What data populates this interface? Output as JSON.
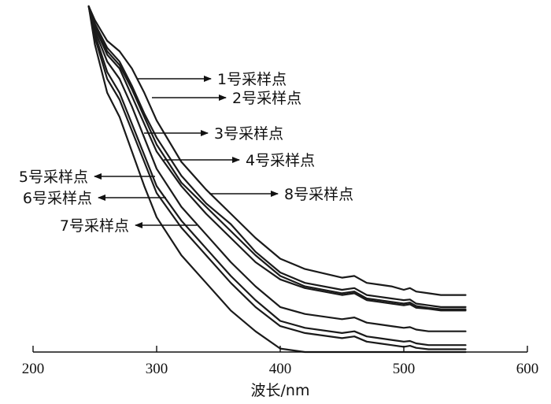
{
  "chart_data": {
    "type": "line",
    "title": "",
    "xlabel": "波长/nm",
    "ylabel": "",
    "xlim": [
      200,
      600
    ],
    "ylim": [
      0,
      1
    ],
    "xticks": [
      200,
      300,
      400,
      500,
      600
    ],
    "grid": false,
    "legend": "none",
    "x": [
      245,
      250,
      260,
      270,
      280,
      290,
      300,
      320,
      340,
      360,
      380,
      400,
      420,
      450,
      460,
      470,
      480,
      490,
      500,
      505,
      510,
      520,
      530,
      540,
      550
    ],
    "series": [
      {
        "values": [
          1.0,
          0.96,
          0.9,
          0.87,
          0.82,
          0.75,
          0.67,
          0.55,
          0.47,
          0.4,
          0.33,
          0.27,
          0.24,
          0.215,
          0.22,
          0.2,
          0.195,
          0.19,
          0.18,
          0.185,
          0.175,
          0.17,
          0.165,
          0.165,
          0.165
        ]
      },
      {
        "values": [
          1.0,
          0.95,
          0.88,
          0.84,
          0.77,
          0.69,
          0.62,
          0.51,
          0.43,
          0.37,
          0.29,
          0.23,
          0.2,
          0.18,
          0.185,
          0.165,
          0.16,
          0.155,
          0.15,
          0.152,
          0.14,
          0.135,
          0.13,
          0.13,
          0.13
        ]
      },
      {
        "values": [
          1.0,
          0.94,
          0.86,
          0.82,
          0.74,
          0.66,
          0.58,
          0.48,
          0.4,
          0.33,
          0.26,
          0.21,
          0.185,
          0.165,
          0.17,
          0.15,
          0.145,
          0.14,
          0.135,
          0.138,
          0.128,
          0.125,
          0.12,
          0.12,
          0.12
        ]
      },
      {
        "values": [
          1.0,
          0.93,
          0.84,
          0.79,
          0.71,
          0.62,
          0.53,
          0.42,
          0.34,
          0.26,
          0.19,
          0.13,
          0.11,
          0.095,
          0.1,
          0.085,
          0.08,
          0.075,
          0.07,
          0.072,
          0.065,
          0.06,
          0.06,
          0.06,
          0.06
        ]
      },
      {
        "values": [
          1.0,
          0.92,
          0.81,
          0.75,
          0.66,
          0.57,
          0.48,
          0.38,
          0.3,
          0.22,
          0.15,
          0.09,
          0.07,
          0.055,
          0.06,
          0.045,
          0.04,
          0.035,
          0.03,
          0.032,
          0.025,
          0.02,
          0.02,
          0.02,
          0.02
        ]
      },
      {
        "values": [
          1.0,
          0.91,
          0.79,
          0.73,
          0.64,
          0.55,
          0.46,
          0.36,
          0.28,
          0.2,
          0.13,
          0.075,
          0.055,
          0.04,
          0.045,
          0.03,
          0.025,
          0.02,
          0.015,
          0.018,
          0.012,
          0.008,
          0.008,
          0.008,
          0.008
        ]
      },
      {
        "values": [
          1.0,
          0.89,
          0.75,
          0.68,
          0.58,
          0.48,
          0.39,
          0.28,
          0.2,
          0.12,
          0.06,
          0.01,
          0.0,
          0.0,
          0.0,
          0.0,
          0.0,
          0.0,
          0.0,
          0.0,
          0.0,
          0.0,
          0.0,
          0.0,
          0.0
        ]
      },
      {
        "values": [
          1.0,
          0.94,
          0.87,
          0.83,
          0.76,
          0.68,
          0.6,
          0.49,
          0.42,
          0.35,
          0.28,
          0.22,
          0.19,
          0.17,
          0.175,
          0.155,
          0.15,
          0.145,
          0.14,
          0.143,
          0.133,
          0.128,
          0.124,
          0.124,
          0.124
        ]
      }
    ],
    "annotations": [
      {
        "text": "1号采样点",
        "direction": "right"
      },
      {
        "text": "2号采样点",
        "direction": "right"
      },
      {
        "text": "3号采样点",
        "direction": "right"
      },
      {
        "text": "4号采样点",
        "direction": "right"
      },
      {
        "text": "5号采样点",
        "direction": "left"
      },
      {
        "text": "6号采样点",
        "direction": "left"
      },
      {
        "text": "7号采样点",
        "direction": "left"
      },
      {
        "text": "8号采样点",
        "direction": "right"
      }
    ]
  }
}
